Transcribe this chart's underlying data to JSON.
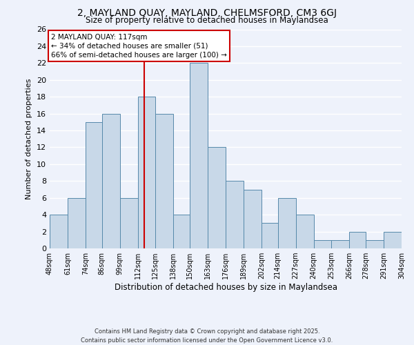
{
  "title": "2, MAYLAND QUAY, MAYLAND, CHELMSFORD, CM3 6GJ",
  "subtitle": "Size of property relative to detached houses in Maylandsea",
  "xlabel": "Distribution of detached houses by size in Maylandsea",
  "ylabel": "Number of detached properties",
  "bar_color": "#c8d8e8",
  "bar_edge_color": "#5588aa",
  "bins": [
    48,
    61,
    74,
    86,
    99,
    112,
    125,
    138,
    150,
    163,
    176,
    189,
    202,
    214,
    227,
    240,
    253,
    266,
    278,
    291,
    304
  ],
  "counts": [
    4,
    6,
    15,
    16,
    6,
    18,
    16,
    4,
    22,
    12,
    8,
    7,
    3,
    6,
    4,
    1,
    1,
    2,
    1,
    2
  ],
  "tick_labels": [
    "48sqm",
    "61sqm",
    "74sqm",
    "86sqm",
    "99sqm",
    "112sqm",
    "125sqm",
    "138sqm",
    "150sqm",
    "163sqm",
    "176sqm",
    "189sqm",
    "202sqm",
    "214sqm",
    "227sqm",
    "240sqm",
    "253sqm",
    "266sqm",
    "278sqm",
    "291sqm",
    "304sqm"
  ],
  "ylim": [
    0,
    26
  ],
  "yticks": [
    0,
    2,
    4,
    6,
    8,
    10,
    12,
    14,
    16,
    18,
    20,
    22,
    24,
    26
  ],
  "property_line_x": 117,
  "property_line_color": "#cc0000",
  "annotation_title": "2 MAYLAND QUAY: 117sqm",
  "annotation_line1": "← 34% of detached houses are smaller (51)",
  "annotation_line2": "66% of semi-detached houses are larger (100) →",
  "annotation_box_color": "#ffffff",
  "annotation_box_edge": "#cc0000",
  "background_color": "#eef2fb",
  "grid_color": "#ffffff",
  "footer1": "Contains HM Land Registry data © Crown copyright and database right 2025.",
  "footer2": "Contains public sector information licensed under the Open Government Licence v3.0."
}
